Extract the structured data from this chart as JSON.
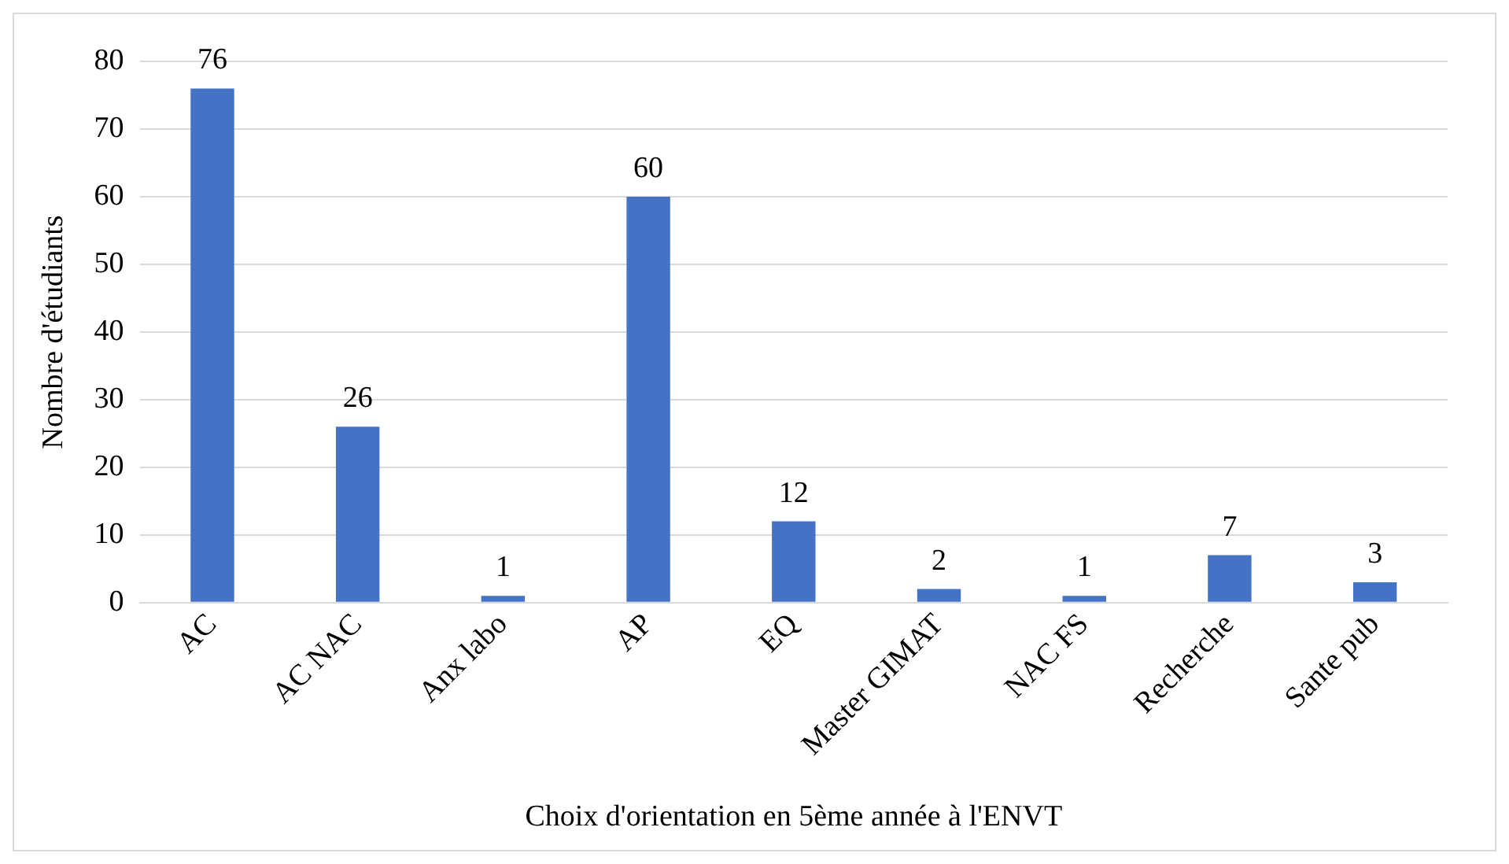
{
  "chart_data": {
    "type": "bar",
    "xlabel": "Choix d'orientation en 5ème année à l'ENVT",
    "ylabel": "Nombre d'étudiants",
    "categories": [
      "AC",
      "AC NAC",
      "Anx labo",
      "AP",
      "EQ",
      "Master GIMAT",
      "NAC FS",
      "Recherche",
      "Sante pub"
    ],
    "values": [
      76,
      26,
      1,
      60,
      12,
      2,
      1,
      7,
      3
    ],
    "color": "#4472c4",
    "ylim": [
      0,
      80
    ],
    "yticks": [
      0,
      10,
      20,
      30,
      40,
      50,
      60,
      70,
      80
    ],
    "grid": "y",
    "data_labels": true,
    "legend": false
  }
}
